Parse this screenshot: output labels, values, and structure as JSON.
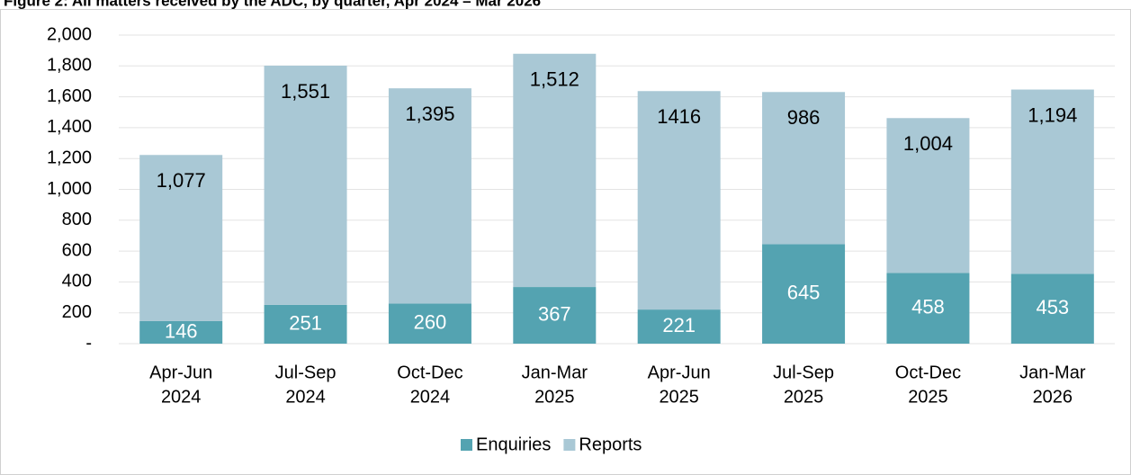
{
  "chart_data": {
    "type": "stacked_bar",
    "title": "Figure 2: All matters received by the ADC, by quarter, Apr 2024 – Mar 2026",
    "categories": [
      [
        "Apr-Jun",
        "2024"
      ],
      [
        "Jul-Sep",
        "2024"
      ],
      [
        "Oct-Dec",
        "2024"
      ],
      [
        "Jan-Mar",
        "2025"
      ],
      [
        "Apr-Jun",
        "2025"
      ],
      [
        "Jul-Sep",
        "2025"
      ],
      [
        "Oct-Dec",
        "2025"
      ],
      [
        "Jan-Mar",
        "2026"
      ]
    ],
    "series": [
      {
        "name": "Enquiries",
        "color": "#54a3b1",
        "label_color": "#ffffff",
        "values": [
          146,
          251,
          260,
          367,
          221,
          645,
          458,
          453
        ]
      },
      {
        "name": "Reports",
        "color": "#a9c8d5",
        "label_color": "#000000",
        "values": [
          1077,
          1551,
          1395,
          1512,
          1416,
          986,
          1004,
          1194
        ],
        "value_labels": [
          "1,077",
          "1,551",
          "1,395",
          "1,512",
          "1416",
          "986",
          "1,004",
          "1,194"
        ]
      }
    ],
    "ylim": [
      0,
      2000
    ],
    "yticks": [
      {
        "value": 0,
        "label": "-"
      },
      200,
      400,
      600,
      800,
      {
        "value": 1000,
        "label": "1,000"
      },
      {
        "value": 1200,
        "label": "1,200"
      },
      {
        "value": 1400,
        "label": "1,400"
      },
      {
        "value": 1600,
        "label": "1,600"
      },
      {
        "value": 1800,
        "label": "1,800"
      },
      {
        "value": 2000,
        "label": "2,000"
      }
    ],
    "grid": true,
    "legend": "bottom"
  }
}
